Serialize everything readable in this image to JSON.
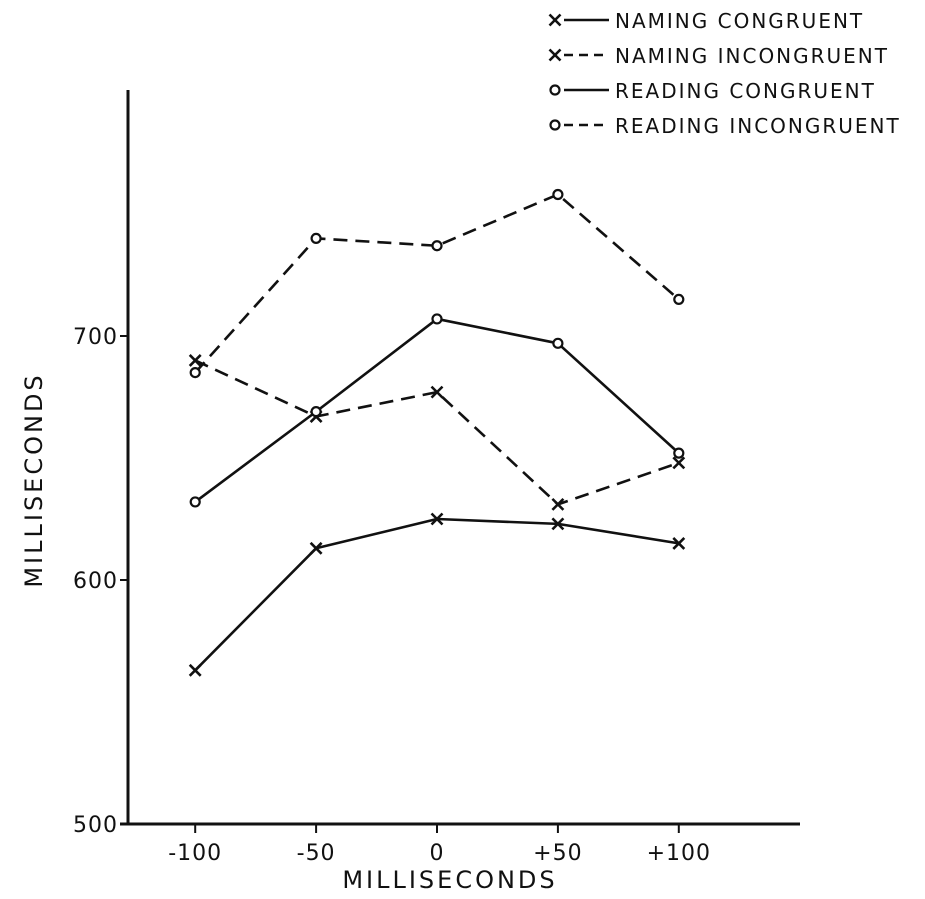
{
  "chart_data": {
    "type": "line",
    "xlabel": "MILLISECONDS",
    "ylabel": "MILLISECONDS",
    "x": [
      -100,
      -50,
      0,
      50,
      100
    ],
    "x_tick_labels": [
      "-100",
      "-50",
      "0",
      "+50",
      "+100"
    ],
    "y_ticks": [
      500,
      600,
      700
    ],
    "y_tick_labels": [
      "500",
      "600",
      "700"
    ],
    "ylim": [
      500,
      800
    ],
    "grid": false,
    "legend_position": "top-right",
    "series": [
      {
        "name": "NAMING CONGRUENT",
        "marker": "x",
        "line": "solid",
        "values": [
          563,
          613,
          625,
          623,
          615
        ]
      },
      {
        "name": "NAMING INCONGRUENT",
        "marker": "x",
        "line": "dashed",
        "values": [
          690,
          667,
          677,
          631,
          648
        ]
      },
      {
        "name": "READING CONGRUENT",
        "marker": "o",
        "line": "solid",
        "values": [
          632,
          669,
          707,
          697,
          652
        ]
      },
      {
        "name": "READING INCONGRUENT",
        "marker": "o",
        "line": "dashed",
        "values": [
          685,
          740,
          737,
          758,
          715
        ]
      }
    ]
  }
}
